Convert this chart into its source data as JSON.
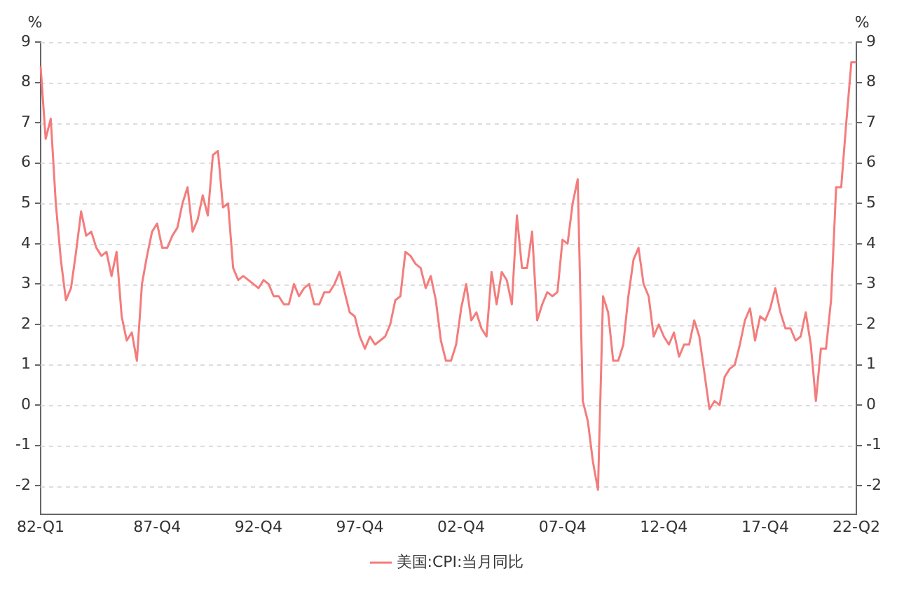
{
  "chart_data": {
    "type": "line",
    "ylabel": "%",
    "y2label": "%",
    "categories": [
      "82-Q1",
      null,
      null,
      null,
      null,
      null,
      null,
      null,
      null,
      null,
      null,
      null,
      null,
      null,
      null,
      null,
      null,
      null,
      null,
      null,
      null,
      null,
      null,
      "87-Q4",
      null,
      null,
      null,
      null,
      null,
      null,
      null,
      null,
      null,
      null,
      null,
      null,
      null,
      null,
      null,
      null,
      null,
      null,
      null,
      "92-Q4",
      null,
      null,
      null,
      null,
      null,
      null,
      null,
      null,
      null,
      null,
      null,
      null,
      null,
      null,
      null,
      null,
      null,
      null,
      null,
      "97-Q4",
      null,
      null,
      null,
      null,
      null,
      null,
      null,
      null,
      null,
      null,
      null,
      null,
      null,
      null,
      null,
      null,
      null,
      null,
      null,
      "02-Q4",
      null,
      null,
      null,
      null,
      null,
      null,
      null,
      null,
      null,
      null,
      null,
      null,
      null,
      null,
      null,
      null,
      null,
      null,
      null,
      "07-Q4",
      null,
      null,
      null,
      null,
      null,
      null,
      null,
      null,
      null,
      null,
      null,
      null,
      null,
      null,
      null,
      null,
      null,
      null,
      null,
      "12-Q4",
      null,
      null,
      null,
      null,
      null,
      null,
      null,
      null,
      null,
      null,
      null,
      null,
      null,
      null,
      null,
      null,
      null,
      null,
      null,
      "17-Q4",
      null,
      null,
      null,
      null,
      null,
      null,
      null,
      null,
      null,
      null,
      null,
      null,
      null,
      null,
      null,
      null,
      null,
      "22-Q2"
    ],
    "series": [
      {
        "name": "美国:CPI:当月同比",
        "color": "#f47c7c",
        "values": [
          8.4,
          6.6,
          7.1,
          5.0,
          3.6,
          2.6,
          2.9,
          3.8,
          4.8,
          4.2,
          4.3,
          3.9,
          3.7,
          3.8,
          3.2,
          3.8,
          2.2,
          1.6,
          1.8,
          1.1,
          3.0,
          3.7,
          4.3,
          4.5,
          3.9,
          3.9,
          4.2,
          4.4,
          5.0,
          5.4,
          4.3,
          4.6,
          5.2,
          4.7,
          6.2,
          6.3,
          4.9,
          5.0,
          3.4,
          3.1,
          3.2,
          3.1,
          3.0,
          2.9,
          3.1,
          3.0,
          2.7,
          2.7,
          2.5,
          2.5,
          3.0,
          2.7,
          2.9,
          3.0,
          2.5,
          2.5,
          2.8,
          2.8,
          3.0,
          3.3,
          2.8,
          2.3,
          2.2,
          1.7,
          1.4,
          1.7,
          1.5,
          1.6,
          1.7,
          2.0,
          2.6,
          2.7,
          3.8,
          3.7,
          3.5,
          3.4,
          2.9,
          3.2,
          2.6,
          1.6,
          1.1,
          1.1,
          1.5,
          2.4,
          3.0,
          2.1,
          2.3,
          1.9,
          1.7,
          3.3,
          2.5,
          3.3,
          3.1,
          2.5,
          4.7,
          3.4,
          3.4,
          4.3,
          2.1,
          2.5,
          2.8,
          2.7,
          2.8,
          4.1,
          4.0,
          5.0,
          5.6,
          0.1,
          -0.4,
          -1.4,
          -2.1,
          2.7,
          2.3,
          1.1,
          1.1,
          1.5,
          2.7,
          3.6,
          3.9,
          3.0,
          2.7,
          1.7,
          2.0,
          1.7,
          1.5,
          1.8,
          1.2,
          1.5,
          1.5,
          2.1,
          1.7,
          0.8,
          -0.1,
          0.1,
          0.0,
          0.7,
          0.9,
          1.0,
          1.5,
          2.1,
          2.4,
          1.6,
          2.2,
          2.1,
          2.4,
          2.9,
          2.3,
          1.9,
          1.9,
          1.6,
          1.7,
          2.3,
          1.5,
          0.1,
          1.4,
          1.4,
          2.6,
          5.4,
          5.4,
          7.0,
          8.5,
          8.5
        ]
      }
    ],
    "ylim": [
      -2.7,
      9
    ],
    "yticks": [
      -2,
      -1,
      0,
      1,
      2,
      3,
      4,
      5,
      6,
      7,
      8,
      9
    ],
    "y2lim": [
      -2.7,
      9
    ],
    "y2ticks": [
      -2,
      -1,
      0,
      1,
      2,
      3,
      4,
      5,
      6,
      7,
      8,
      9
    ],
    "grid": "y",
    "legend": "bottom",
    "marker": "none",
    "line_style": "solid"
  }
}
